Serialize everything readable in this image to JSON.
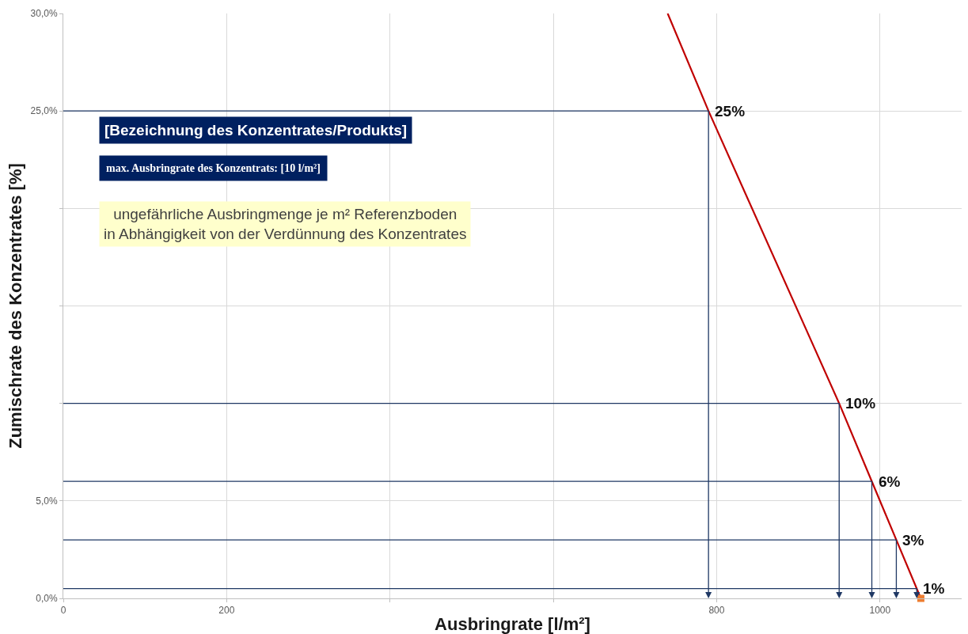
{
  "chart_data": {
    "type": "line",
    "xlabel": "Ausbringrate [l/m²]",
    "ylabel": "Zumischrate des Konzentrates [%]",
    "xlim": [
      0,
      1100
    ],
    "xticks": [
      0,
      200,
      {
        "value": 400,
        "label": null
      },
      {
        "value": 600,
        "label": null
      },
      800,
      1000
    ],
    "ylim": [
      0,
      30
    ],
    "yticks": [
      {
        "value": 0,
        "label": "0,0%"
      },
      {
        "value": 5,
        "label": "5,0%"
      },
      {
        "value": 10,
        "label": null
      },
      {
        "value": 15,
        "label": null
      },
      {
        "value": 20,
        "label": null
      },
      {
        "value": 25,
        "label": "25,0%"
      },
      {
        "value": 30,
        "label": "30,0%"
      }
    ],
    "grid": true,
    "series": [
      {
        "color": "#c00000",
        "x": [
          740,
          790,
          950,
          990,
          1020,
          1050
        ],
        "values": [
          30,
          25,
          10,
          6,
          3,
          0
        ]
      },
      {
        "type": "scatter",
        "color": "#ed7d31",
        "x": [
          1050
        ],
        "values": [
          0
        ],
        "marker": "square"
      }
    ],
    "annotations": [
      "[Bezeichnung des Konzentrates/Produkts]",
      "max. Ausbringrate des Konzentrats: [10 l/m²]",
      "ungefährliche Ausbringmenge je m² Referenzboden\nin Abhängigkeit von der Verdünnung des Konzentrates",
      {
        "text": "25%",
        "x": 790,
        "y": 25
      },
      {
        "text": "10%",
        "x": 950,
        "y": 10
      },
      {
        "text": "6%",
        "x": 990,
        "y": 6
      },
      {
        "text": "3%",
        "x": 1020,
        "y": 3
      },
      {
        "text": "1%",
        "x": 1045,
        "y": 0.5
      }
    ]
  }
}
